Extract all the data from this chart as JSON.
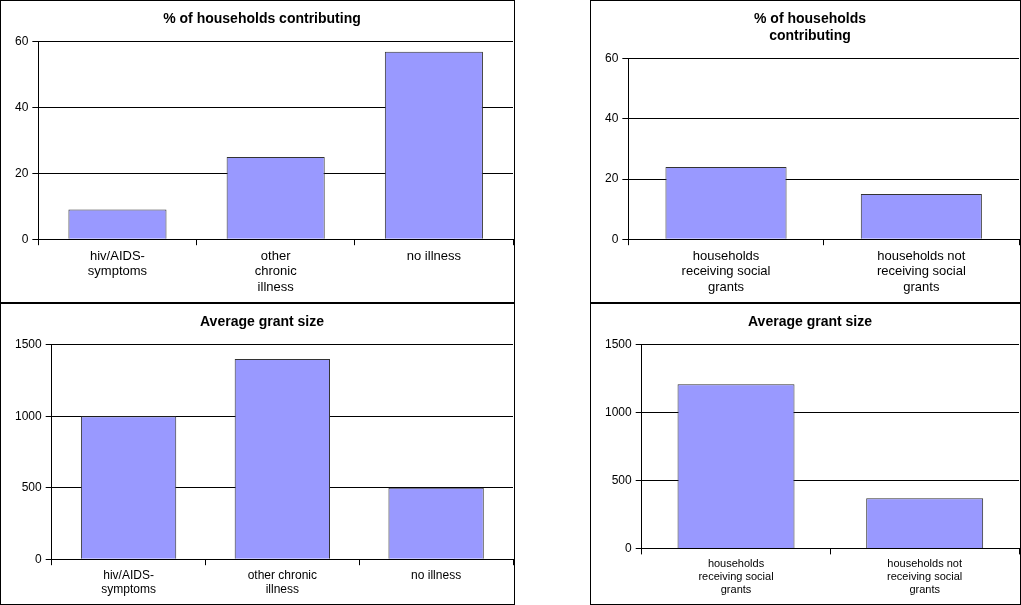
{
  "chart_data": [
    {
      "type": "bar",
      "title": "% of households contributing",
      "categories": [
        "hiv/AIDS-symptoms",
        "other chronic illness",
        "no illness"
      ],
      "values": [
        9,
        25,
        57
      ],
      "color": "#9999ff",
      "ylim": [
        0,
        60
      ],
      "yticks": [
        0,
        20,
        40,
        60
      ],
      "grid": "y"
    },
    {
      "type": "bar",
      "title": "% of households contributing",
      "categories": [
        "households receiving social grants",
        "households not receiving social grants"
      ],
      "values": [
        24,
        15
      ],
      "color": "#9999ff",
      "ylim": [
        0,
        60
      ],
      "yticks": [
        0,
        20,
        40,
        60
      ],
      "grid": "y"
    },
    {
      "type": "bar",
      "title": "Average grant size",
      "categories": [
        "hiv/AIDS-symptoms",
        "other chronic illness",
        "no illness"
      ],
      "values": [
        1000,
        1400,
        500
      ],
      "color": "#9999ff",
      "ylim": [
        0,
        1500
      ],
      "yticks": [
        0,
        500,
        1000,
        1500
      ],
      "grid": "y"
    },
    {
      "type": "bar",
      "title": "Average grant size",
      "categories": [
        "households receiving social grants",
        "households not receiving social grants"
      ],
      "values": [
        1210,
        370
      ],
      "color": "#9999ff",
      "ylim": [
        0,
        1500
      ],
      "yticks": [
        0,
        500,
        1000,
        1500
      ],
      "grid": "y"
    }
  ]
}
